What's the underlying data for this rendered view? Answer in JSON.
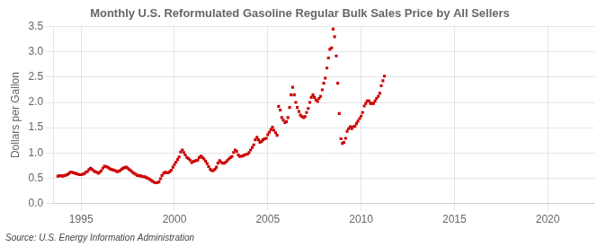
{
  "chart_data": {
    "type": "scatter",
    "title": "Monthly U.S. Reformulated Gasoline Regular Bulk Sales Price by All Sellers",
    "ylabel": "Dollars per Gallon",
    "annotations": [
      "Source: U.S. Energy Information Administration"
    ],
    "color": "#cc0000",
    "marker": "square",
    "grid": true,
    "xlim": [
      1993.5,
      2022.5
    ],
    "ylim": [
      0.0,
      3.5
    ],
    "xticks": [
      1995,
      2000,
      2005,
      2010,
      2015,
      2020
    ],
    "yticks": [
      {
        "value": 0.0,
        "label": "0.0"
      },
      0.5,
      {
        "value": 1.0,
        "label": "1.0"
      },
      1.5,
      {
        "value": 2.0,
        "label": "2.0"
      },
      2.5,
      {
        "value": 3.0,
        "label": "3.0"
      },
      3.5
    ],
    "x": [
      1993.75,
      1993.83,
      1993.92,
      1994.0,
      1994.08,
      1994.17,
      1994.25,
      1994.33,
      1994.42,
      1994.5,
      1994.58,
      1994.67,
      1994.75,
      1994.83,
      1994.92,
      1995.0,
      1995.08,
      1995.17,
      1995.25,
      1995.33,
      1995.42,
      1995.5,
      1995.58,
      1995.67,
      1995.75,
      1995.83,
      1995.92,
      1996.0,
      1996.08,
      1996.17,
      1996.25,
      1996.33,
      1996.42,
      1996.5,
      1996.58,
      1996.67,
      1996.75,
      1996.83,
      1996.92,
      1997.0,
      1997.08,
      1997.17,
      1997.25,
      1997.33,
      1997.42,
      1997.5,
      1997.58,
      1997.67,
      1997.75,
      1997.83,
      1997.92,
      1998.0,
      1998.08,
      1998.17,
      1998.25,
      1998.33,
      1998.42,
      1998.5,
      1998.58,
      1998.67,
      1998.75,
      1998.83,
      1998.92,
      1999.0,
      1999.08,
      1999.17,
      1999.25,
      1999.33,
      1999.42,
      1999.5,
      1999.58,
      1999.67,
      1999.75,
      1999.83,
      1999.92,
      2000.0,
      2000.08,
      2000.17,
      2000.25,
      2000.33,
      2000.42,
      2000.5,
      2000.58,
      2000.67,
      2000.75,
      2000.83,
      2000.92,
      2001.0,
      2001.08,
      2001.17,
      2001.25,
      2001.33,
      2001.42,
      2001.5,
      2001.58,
      2001.67,
      2001.75,
      2001.83,
      2001.92,
      2002.0,
      2002.08,
      2002.17,
      2002.25,
      2002.33,
      2002.42,
      2002.5,
      2002.58,
      2002.67,
      2002.75,
      2002.83,
      2002.92,
      2003.0,
      2003.08,
      2003.17,
      2003.25,
      2003.33,
      2003.42,
      2003.5,
      2003.58,
      2003.67,
      2003.75,
      2003.83,
      2003.92,
      2004.0,
      2004.08,
      2004.17,
      2004.25,
      2004.33,
      2004.42,
      2004.5,
      2004.58,
      2004.67,
      2004.75,
      2004.83,
      2004.92,
      2005.0,
      2005.08,
      2005.17,
      2005.25,
      2005.33,
      2005.42,
      2005.5,
      2005.58,
      2005.67,
      2005.75,
      2005.83,
      2005.92,
      2006.0,
      2006.08,
      2006.17,
      2006.25,
      2006.33,
      2006.42,
      2006.5,
      2006.58,
      2006.67,
      2006.75,
      2006.83,
      2006.92,
      2007.0,
      2007.08,
      2007.17,
      2007.25,
      2007.33,
      2007.42,
      2007.5,
      2007.58,
      2007.67,
      2007.75,
      2007.83,
      2007.92,
      2008.0,
      2008.08,
      2008.17,
      2008.25,
      2008.33,
      2008.42,
      2008.5,
      2008.58,
      2008.67,
      2008.75,
      2008.83,
      2008.92,
      2009.0,
      2009.08,
      2009.17,
      2009.25,
      2009.33,
      2009.42,
      2009.5,
      2009.58,
      2009.67,
      2009.75,
      2009.83,
      2009.92,
      2010.0,
      2010.08,
      2010.17,
      2010.25,
      2010.33,
      2010.42,
      2010.5,
      2010.58,
      2010.67,
      2010.75,
      2010.83,
      2010.92,
      2011.0,
      2011.08,
      2011.17,
      2011.25
    ],
    "values": [
      0.54,
      0.55,
      0.55,
      0.54,
      0.55,
      0.56,
      0.57,
      0.59,
      0.62,
      0.62,
      0.61,
      0.6,
      0.59,
      0.58,
      0.57,
      0.57,
      0.58,
      0.59,
      0.62,
      0.63,
      0.67,
      0.7,
      0.68,
      0.65,
      0.63,
      0.62,
      0.6,
      0.62,
      0.65,
      0.7,
      0.74,
      0.73,
      0.72,
      0.7,
      0.68,
      0.67,
      0.66,
      0.65,
      0.63,
      0.64,
      0.65,
      0.68,
      0.7,
      0.71,
      0.72,
      0.7,
      0.67,
      0.65,
      0.62,
      0.6,
      0.58,
      0.56,
      0.55,
      0.55,
      0.54,
      0.53,
      0.53,
      0.51,
      0.5,
      0.48,
      0.46,
      0.44,
      0.42,
      0.41,
      0.41,
      0.43,
      0.49,
      0.55,
      0.6,
      0.62,
      0.61,
      0.61,
      0.63,
      0.66,
      0.72,
      0.77,
      0.82,
      0.87,
      0.92,
      1.02,
      1.06,
      1.01,
      0.96,
      0.91,
      0.89,
      0.86,
      0.81,
      0.83,
      0.84,
      0.85,
      0.86,
      0.91,
      0.94,
      0.91,
      0.88,
      0.84,
      0.79,
      0.73,
      0.68,
      0.65,
      0.65,
      0.68,
      0.72,
      0.8,
      0.85,
      0.82,
      0.8,
      0.8,
      0.82,
      0.85,
      0.88,
      0.91,
      0.93,
      1.01,
      1.06,
      1.03,
      0.96,
      0.93,
      0.94,
      0.94,
      0.96,
      0.97,
      0.98,
      1.01,
      1.06,
      1.11,
      1.16,
      1.26,
      1.31,
      1.26,
      1.21,
      1.23,
      1.26,
      1.28,
      1.29,
      1.36,
      1.41,
      1.46,
      1.51,
      1.45,
      1.4,
      1.35,
      1.92,
      1.85,
      1.7,
      1.65,
      1.6,
      1.62,
      1.7,
      1.9,
      2.15,
      2.3,
      2.15,
      2.0,
      1.9,
      1.82,
      1.75,
      1.72,
      1.7,
      1.72,
      1.8,
      1.88,
      2.0,
      2.1,
      2.15,
      2.1,
      2.05,
      2.02,
      2.08,
      2.12,
      2.25,
      2.38,
      2.48,
      2.68,
      2.88,
      3.05,
      3.08,
      3.45,
      3.3,
      2.92,
      2.38,
      1.78,
      1.28,
      1.19,
      1.21,
      1.29,
      1.43,
      1.48,
      1.52,
      1.48,
      1.52,
      1.53,
      1.58,
      1.63,
      1.68,
      1.73,
      1.8,
      1.93,
      1.98,
      2.03,
      2.03,
      1.98,
      1.98,
      1.98,
      2.03,
      2.08,
      2.12,
      2.18,
      2.33,
      2.43,
      2.52
    ]
  }
}
